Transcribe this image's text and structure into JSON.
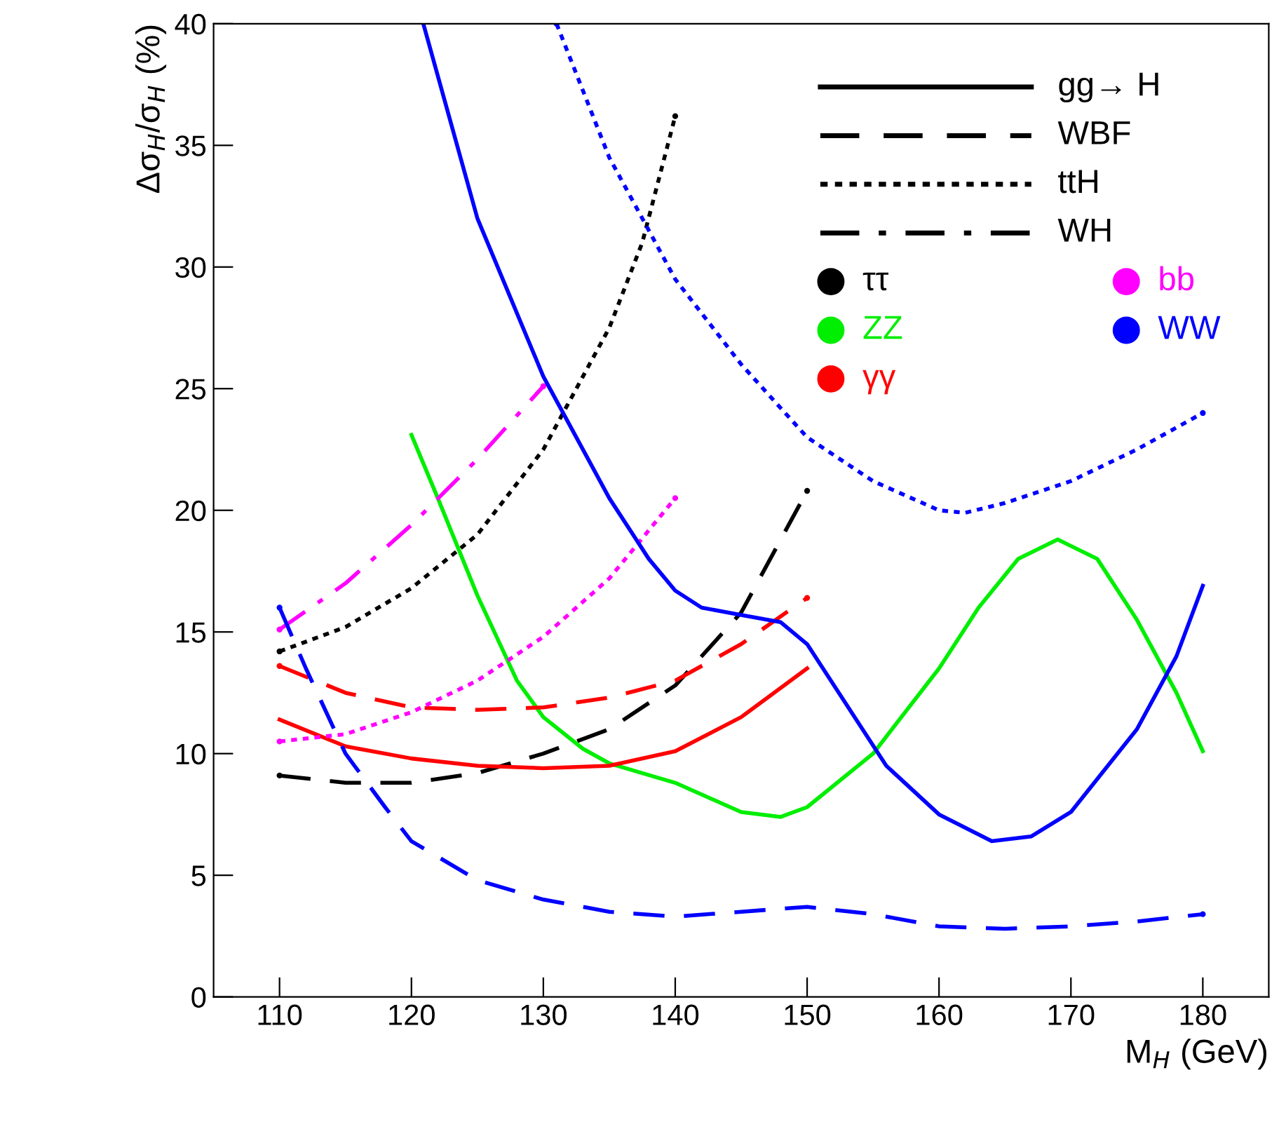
{
  "chart_data": {
    "type": "line",
    "xlabel": "M$_{H}$ (GeV)",
    "ylabel": "Δσ$_{H}$/σ$_{H}$ (%)",
    "xlim": [
      105,
      185
    ],
    "xticks": [
      110,
      120,
      130,
      140,
      150,
      160,
      170,
      180
    ],
    "ylim": [
      0,
      40
    ],
    "yticks": [
      0,
      5,
      10,
      15,
      20,
      25,
      30,
      35,
      40
    ],
    "grid": false,
    "annotations": [
      "gg→ H",
      "WBF",
      "ttH",
      "WH",
      "ττ",
      "ZZ",
      "γγ",
      "bb",
      "WW"
    ],
    "series": [
      {
        "color": "#000000",
        "line_style": "dashed",
        "x": [
          110,
          115,
          120,
          125,
          130,
          135,
          140,
          145,
          150
        ],
        "values": [
          9.1,
          8.8,
          8.8,
          9.2,
          10.0,
          11.0,
          12.8,
          15.8,
          20.8
        ]
      },
      {
        "color": "#000000",
        "line_style": "dotted",
        "x": [
          110,
          115,
          120,
          125,
          130,
          135,
          137.5,
          140
        ],
        "values": [
          14.2,
          15.2,
          16.8,
          19.0,
          22.5,
          27.5,
          31,
          36.2
        ]
      },
      {
        "color": "#00ee00",
        "line_style": "solid",
        "x": [
          120,
          122,
          125,
          128,
          130,
          133,
          135,
          140,
          145,
          148,
          150,
          155,
          160,
          163,
          166,
          169,
          172,
          175,
          178,
          180
        ],
        "values": [
          23.1,
          20.5,
          16.5,
          13.0,
          11.5,
          10.2,
          9.6,
          8.8,
          7.6,
          7.4,
          7.8,
          10.0,
          13.5,
          16,
          18.0,
          18.8,
          18.0,
          15.5,
          12.5,
          10.1
        ]
      },
      {
        "color": "#ff0000",
        "line_style": "solid",
        "x": [
          110,
          115,
          120,
          125,
          130,
          135,
          140,
          145,
          150
        ],
        "values": [
          11.4,
          10.3,
          9.8,
          9.5,
          9.4,
          9.5,
          10.1,
          11.5,
          13.5
        ]
      },
      {
        "color": "#ff0000",
        "line_style": "dashed",
        "x": [
          110,
          115,
          120,
          125,
          130,
          135,
          140,
          145,
          150
        ],
        "values": [
          13.6,
          12.5,
          11.9,
          11.8,
          11.9,
          12.3,
          13.0,
          14.5,
          16.4
        ]
      },
      {
        "color": "#ff00ff",
        "line_style": "dashdot",
        "x": [
          110,
          115,
          120,
          125,
          130
        ],
        "values": [
          15.1,
          17.0,
          19.4,
          22.1,
          25.1
        ]
      },
      {
        "color": "#ff00ff",
        "line_style": "dotted",
        "x": [
          110,
          115,
          120,
          125,
          130,
          135,
          140
        ],
        "values": [
          10.5,
          10.8,
          11.7,
          13.0,
          14.8,
          17.2,
          20.5
        ]
      },
      {
        "color": "#0000ff",
        "line_style": "solid",
        "x": [
          120.9,
          125,
          130,
          135,
          138,
          140,
          142,
          145,
          148,
          150,
          153,
          156,
          160,
          164,
          167,
          170,
          175,
          178,
          180
        ],
        "values": [
          40,
          32,
          25.5,
          20.5,
          18.0,
          16.7,
          16.0,
          15.7,
          15.4,
          14.5,
          12.0,
          9.5,
          7.5,
          6.4,
          6.6,
          7.6,
          11.0,
          14.0,
          16.9
        ]
      },
      {
        "color": "#0000ff",
        "line_style": "dashed",
        "x": [
          110,
          112,
          115,
          118,
          120,
          125,
          130,
          135,
          140,
          145,
          150,
          155,
          160,
          165,
          170,
          175,
          180
        ],
        "values": [
          16.0,
          13.5,
          10.0,
          7.8,
          6.4,
          4.8,
          4.0,
          3.5,
          3.3,
          3.5,
          3.7,
          3.4,
          2.9,
          2.8,
          2.9,
          3.1,
          3.4
        ]
      },
      {
        "color": "#0000ff",
        "line_style": "dotted",
        "x": [
          131,
          135,
          140,
          145,
          150,
          155,
          160,
          162,
          165,
          170,
          175,
          180
        ],
        "values": [
          40,
          34.5,
          29.5,
          26.0,
          23.0,
          21.2,
          20.0,
          19.9,
          20.3,
          21.2,
          22.5,
          24.0
        ]
      }
    ]
  }
}
